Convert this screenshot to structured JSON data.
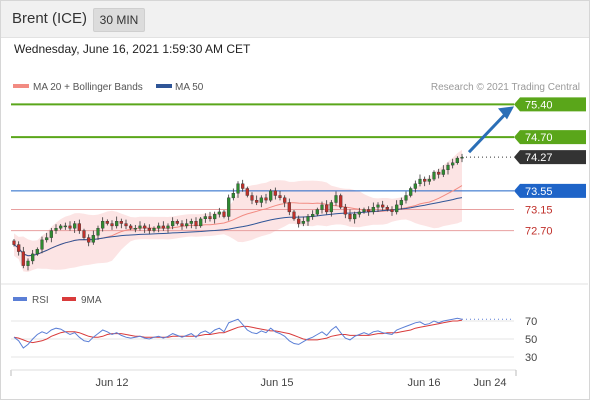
{
  "header": {
    "title": "Brent (ICE)",
    "timeframe": "30 MIN"
  },
  "date_label": "Wednesday, June 16, 2021 1:59:30 AM CET",
  "legend": {
    "items": [
      {
        "label": "MA 20 + Bollinger Bands",
        "color": "#f28b82"
      },
      {
        "label": "MA 50",
        "color": "#2f5597"
      }
    ],
    "credit": "Research © 2021 Trading Central"
  },
  "colors": {
    "green": "#5aa61a",
    "blue": "#1e64c8",
    "red_level": "#c0302b",
    "arrow": "#2b6fb7",
    "candle_up": "#2e8b30",
    "candle_down": "#c0302b",
    "band_fill": "#fbd8d8",
    "rsi_line": "#5b7fd6",
    "ma_line": "#d93b3b",
    "current": "#333333"
  },
  "chart_data": [
    {
      "type": "candlestick",
      "title": "",
      "x_ticks": [
        "Jun 12",
        "Jun 15",
        "Jun 16",
        "Jun 24"
      ],
      "ylim": [
        71.6,
        75.6
      ],
      "levels": [
        {
          "value": 75.4,
          "label": "75.40",
          "kind": "target"
        },
        {
          "value": 74.7,
          "label": "74.70",
          "kind": "resistance"
        },
        {
          "value": 74.27,
          "label": "74.27",
          "kind": "current"
        },
        {
          "value": 73.55,
          "label": "73.55",
          "kind": "pivot"
        },
        {
          "value": 73.15,
          "label": "73.15",
          "kind": "support"
        },
        {
          "value": 72.7,
          "label": "72.70",
          "kind": "support"
        }
      ],
      "series": [
        {
          "name": "MA 20 + Bollinger Bands"
        },
        {
          "name": "MA 50"
        }
      ],
      "close": [
        72.4,
        72.25,
        71.95,
        72.05,
        72.2,
        72.3,
        72.5,
        72.55,
        72.7,
        72.75,
        72.8,
        72.8,
        72.75,
        72.85,
        72.7,
        72.55,
        72.45,
        72.6,
        72.75,
        72.9,
        72.85,
        72.8,
        72.9,
        72.85,
        72.8,
        72.75,
        72.75,
        72.8,
        72.75,
        72.7,
        72.75,
        72.8,
        72.75,
        72.8,
        72.9,
        72.85,
        72.8,
        72.85,
        72.9,
        72.8,
        72.95,
        73.0,
        72.95,
        73.05,
        73.1,
        73.0,
        73.4,
        73.5,
        73.7,
        73.6,
        73.45,
        73.35,
        73.3,
        73.4,
        73.35,
        73.55,
        73.45,
        73.4,
        73.3,
        73.1,
        72.95,
        72.85,
        72.9,
        73.0,
        73.05,
        73.15,
        73.25,
        73.1,
        73.3,
        73.45,
        73.2,
        73.05,
        72.95,
        73.05,
        73.1,
        73.15,
        73.1,
        73.2,
        73.25,
        73.2,
        73.15,
        73.1,
        73.25,
        73.35,
        73.45,
        73.6,
        73.7,
        73.8,
        73.75,
        73.8,
        73.95,
        73.9,
        74.0,
        74.1,
        74.15,
        74.25,
        74.27
      ]
    },
    {
      "type": "line",
      "title": "",
      "series": [
        {
          "name": "RSI"
        },
        {
          "name": "9MA"
        }
      ],
      "y_ticks": [
        70,
        50,
        30
      ],
      "ylim": [
        20,
        80
      ],
      "rsi": [
        52,
        48,
        40,
        44,
        50,
        55,
        58,
        56,
        60,
        62,
        61,
        58,
        55,
        57,
        52,
        48,
        47,
        52,
        56,
        60,
        58,
        55,
        57,
        54,
        52,
        51,
        52,
        53,
        51,
        50,
        52,
        53,
        51,
        53,
        56,
        54,
        52,
        54,
        56,
        52,
        57,
        59,
        56,
        60,
        62,
        58,
        68,
        70,
        72,
        66,
        60,
        57,
        56,
        59,
        57,
        62,
        58,
        56,
        53,
        48,
        45,
        44,
        47,
        50,
        52,
        55,
        58,
        54,
        60,
        64,
        57,
        51,
        49,
        53,
        55,
        57,
        55,
        58,
        59,
        57,
        56,
        55,
        60,
        62,
        64,
        66,
        68,
        69,
        66,
        67,
        70,
        68,
        70,
        71,
        72,
        73,
        72
      ],
      "ma": [
        52,
        51,
        49,
        47,
        46,
        47,
        48,
        50,
        53,
        55,
        57,
        58,
        58,
        58,
        57,
        55,
        53,
        52,
        52,
        53,
        55,
        56,
        56,
        56,
        55,
        54,
        53,
        53,
        52,
        52,
        52,
        52,
        52,
        52,
        53,
        53,
        53,
        53,
        53,
        53,
        54,
        55,
        55,
        56,
        57,
        57,
        59,
        61,
        63,
        64,
        64,
        63,
        62,
        61,
        60,
        59,
        59,
        58,
        57,
        56,
        54,
        52,
        50,
        49,
        49,
        49,
        50,
        51,
        53,
        54,
        55,
        55,
        54,
        54,
        54,
        54,
        54,
        55,
        56,
        56,
        57,
        57,
        57,
        58,
        59,
        60,
        62,
        63,
        64,
        65,
        66,
        67,
        68,
        69,
        70,
        70,
        71
      ]
    }
  ]
}
